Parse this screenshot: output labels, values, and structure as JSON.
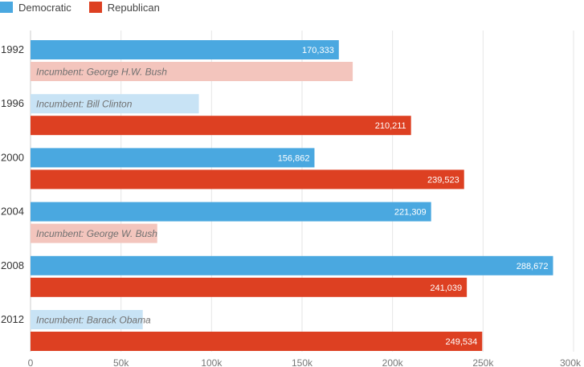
{
  "colors": {
    "democratic": "#4aa8e0",
    "republican": "#dd4022",
    "democratic_light": "#c8e3f5",
    "republican_light": "#f3c5bd",
    "grid": "#e6e6e6",
    "axis": "#cccccc",
    "tick_text": "#777777",
    "incumbent_text": "#707070"
  },
  "legend": [
    {
      "label": "Democratic",
      "color_key": "democratic"
    },
    {
      "label": "Republican",
      "color_key": "republican"
    }
  ],
  "chart_data": {
    "type": "bar",
    "orientation": "horizontal",
    "title": "",
    "xlabel": "",
    "ylabel": "",
    "categories": [
      "1992",
      "1996",
      "2000",
      "2004",
      "2008",
      "2012"
    ],
    "xlim": [
      0,
      300000
    ],
    "xticks": [
      0,
      50000,
      100000,
      150000,
      200000,
      250000,
      300000
    ],
    "xtick_labels": [
      "0",
      "50k",
      "100k",
      "150k",
      "200k",
      "250k",
      "300k"
    ],
    "grid": true,
    "legend_position": "top-left",
    "series": [
      {
        "name": "Democratic",
        "values": [
          170333,
          93000,
          156862,
          221309,
          288672,
          62000
        ],
        "labels": [
          "170,333",
          "Incumbent: Bill Clinton",
          "156,862",
          "221,309",
          "288,672",
          "Incumbent: Barack Obama"
        ],
        "incumbent": [
          false,
          true,
          false,
          false,
          false,
          true
        ]
      },
      {
        "name": "Republican",
        "values": [
          178000,
          210211,
          239523,
          70000,
          241039,
          249534
        ],
        "labels": [
          "Incumbent: George H.W. Bush",
          "210,211",
          "239,523",
          "Incumbent: George W. Bush",
          "241,039",
          "249,534"
        ],
        "incumbent": [
          true,
          false,
          false,
          true,
          false,
          false
        ]
      }
    ]
  }
}
